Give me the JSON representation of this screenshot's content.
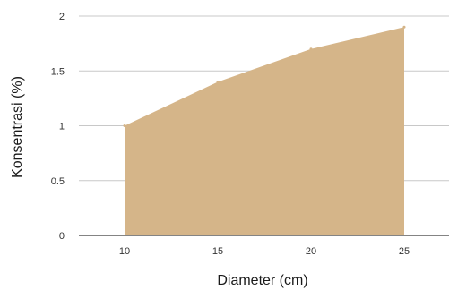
{
  "chart_data": {
    "type": "area",
    "title": "",
    "xlabel": "Diameter (cm)",
    "ylabel": "Konsentrasi (%)",
    "x": [
      10,
      15,
      20,
      25
    ],
    "series": [
      {
        "values": [
          1.0,
          1.4,
          1.7,
          1.9
        ]
      }
    ],
    "xticks": [
      "10",
      "15",
      "20",
      "25"
    ],
    "yticks": [
      "0",
      "0.5",
      "1",
      "1.5",
      "2"
    ],
    "xlim": [
      7,
      27
    ],
    "ylim": [
      0,
      2
    ],
    "grid": "horizontal",
    "legend": "none",
    "colors": {
      "fill": "#d5b589",
      "grid": "#c8c8c8",
      "text": "#333333"
    }
  }
}
